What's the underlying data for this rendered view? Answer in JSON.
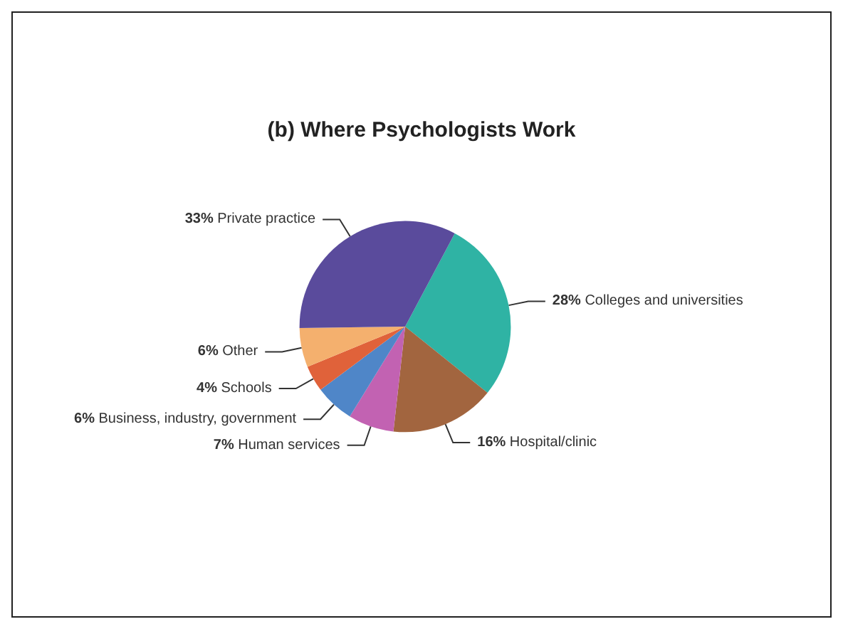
{
  "chart_data": {
    "type": "pie",
    "title": "(b) Where Psychologists Work",
    "categories": [
      "Colleges and universities",
      "Hospital/clinic",
      "Human services",
      "Business, industry, government",
      "Schools",
      "Other",
      "Private practice"
    ],
    "values": [
      28,
      16,
      7,
      6,
      4,
      6,
      33
    ],
    "value_labels": [
      "28%",
      "16%",
      "7%",
      "6%",
      "4%",
      "6%",
      "33%"
    ],
    "colors": [
      "#2fb3a4",
      "#a2653f",
      "#c262b2",
      "#4f86c8",
      "#e0623a",
      "#f4b06e",
      "#5a4b9c"
    ]
  }
}
